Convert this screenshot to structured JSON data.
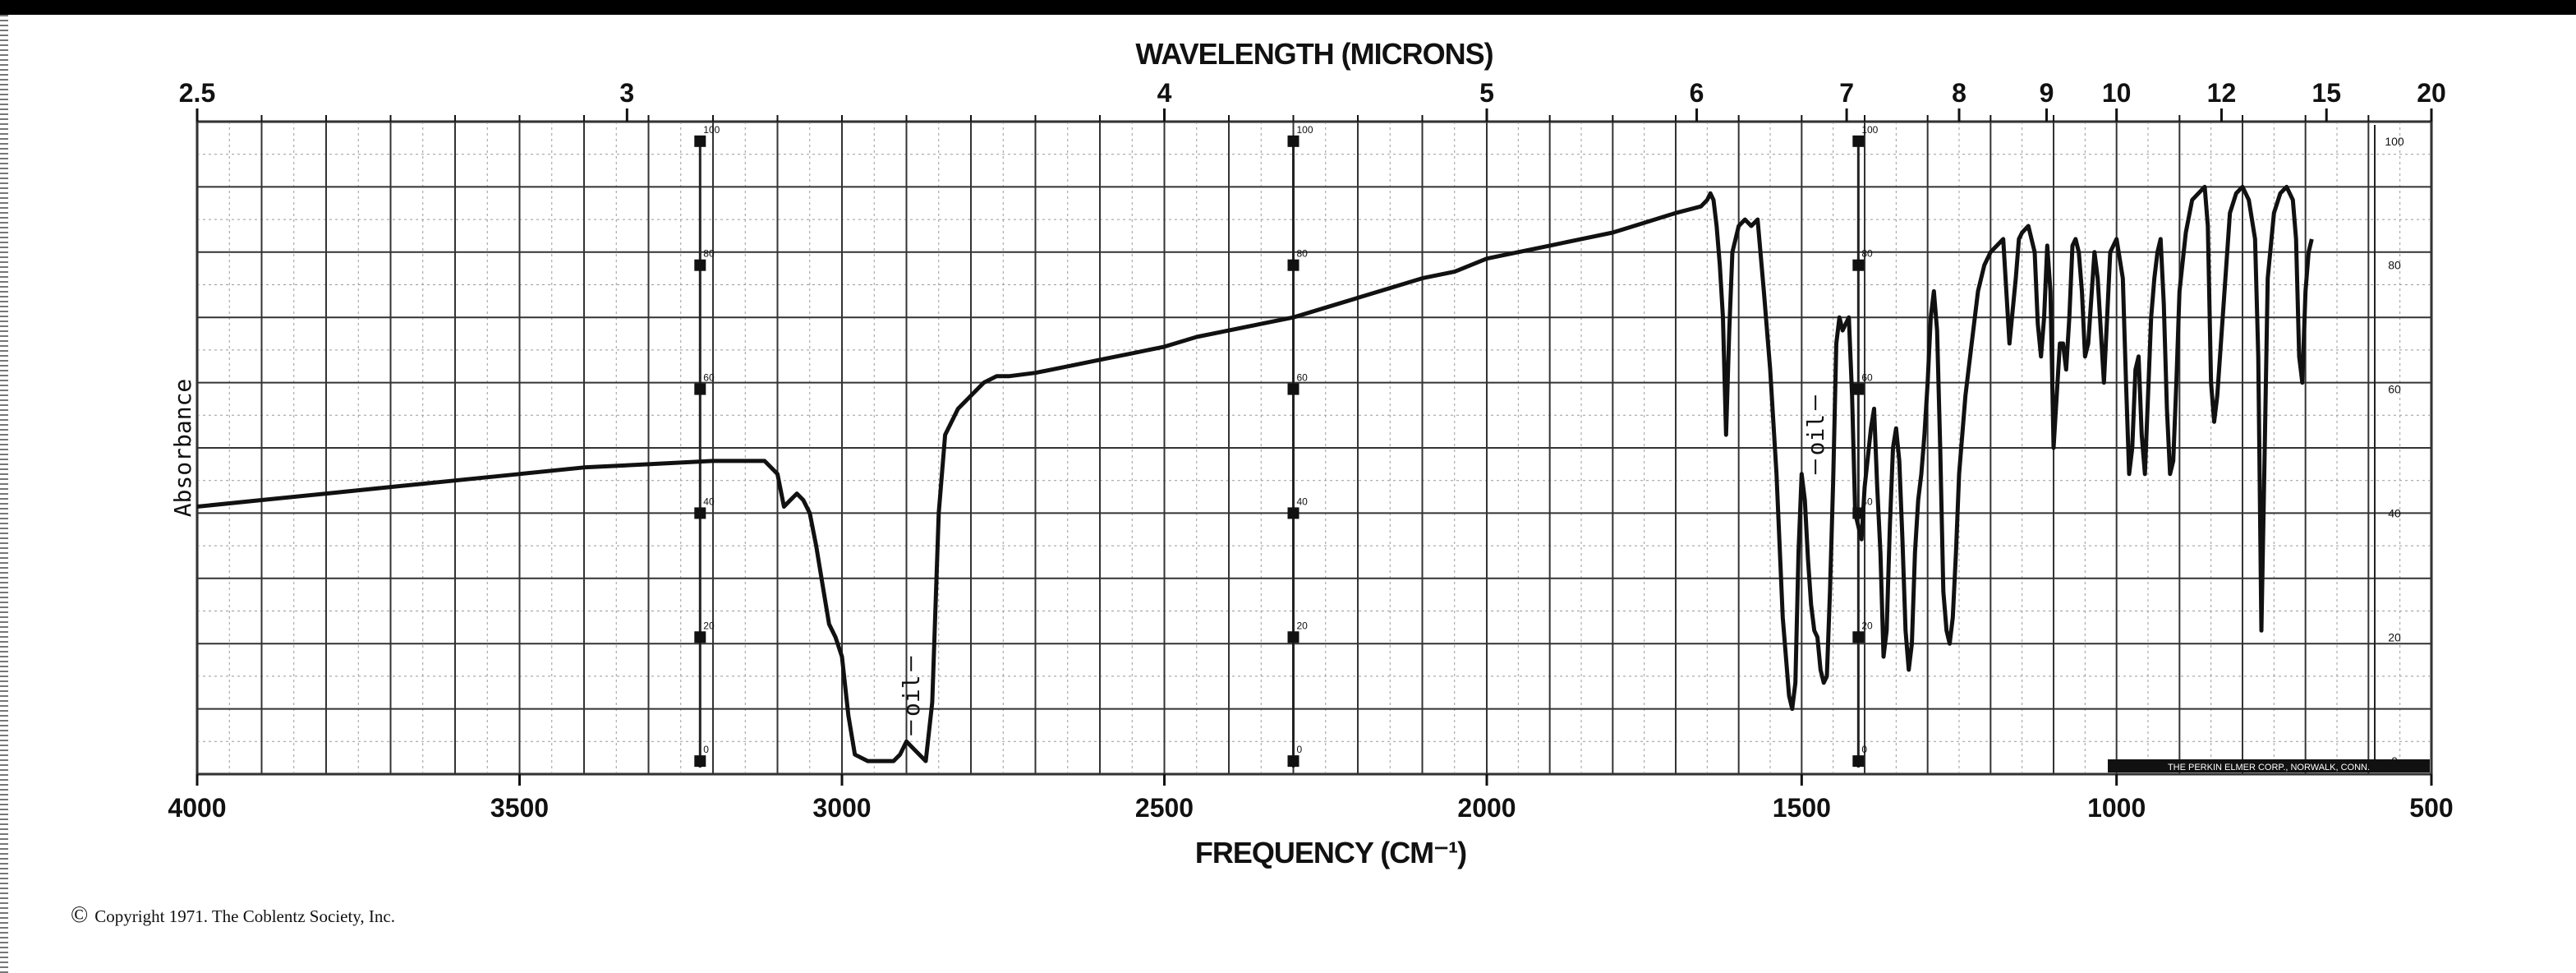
{
  "chart_data": {
    "type": "line",
    "title": "",
    "xlabel": "FREQUENCY (CM⁻¹)",
    "x2label": "WAVELENGTH (MICRONS)",
    "ylabel": "Absorbance",
    "x_range": [
      4000,
      500
    ],
    "x_ticks": [
      "4000",
      "3500",
      "3000",
      "2500",
      "2000",
      "1500",
      "1000",
      "500"
    ],
    "x_tick_values": [
      4000,
      3500,
      3000,
      2500,
      2000,
      1500,
      1000,
      500
    ],
    "wavelength_ticks": [
      "2.5",
      "3",
      "4",
      "5",
      "6",
      "7",
      "8",
      "9",
      "10",
      "12",
      "15",
      "20"
    ],
    "wavelength_values": [
      2.5,
      3,
      4,
      5,
      6,
      7,
      8,
      9,
      10,
      12,
      15,
      20
    ],
    "y_range": [
      0,
      100
    ],
    "y_scale_labels": [
      "100",
      "80",
      "60",
      "40",
      "20",
      "0"
    ],
    "y_scale_values": [
      100,
      80,
      60,
      40,
      20,
      0
    ],
    "grid": true,
    "annotations": [
      {
        "text": "oil",
        "x": 2880,
        "y": 12
      },
      {
        "text": "oil",
        "x": 1465,
        "y": 52
      }
    ],
    "series": [
      {
        "points": [
          [
            4000,
            41
          ],
          [
            3900,
            42
          ],
          [
            3800,
            43
          ],
          [
            3700,
            44
          ],
          [
            3600,
            45
          ],
          [
            3500,
            46
          ],
          [
            3400,
            47
          ],
          [
            3300,
            47.5
          ],
          [
            3200,
            48
          ],
          [
            3120,
            48
          ],
          [
            3100,
            46
          ],
          [
            3090,
            41
          ],
          [
            3080,
            42
          ],
          [
            3070,
            43
          ],
          [
            3060,
            42
          ],
          [
            3050,
            40
          ],
          [
            3040,
            35
          ],
          [
            3030,
            29
          ],
          [
            3020,
            23
          ],
          [
            3010,
            21
          ],
          [
            3000,
            18
          ],
          [
            2990,
            9
          ],
          [
            2980,
            3
          ],
          [
            2960,
            2
          ],
          [
            2940,
            2
          ],
          [
            2920,
            2
          ],
          [
            2910,
            3
          ],
          [
            2900,
            5
          ],
          [
            2890,
            4
          ],
          [
            2880,
            3
          ],
          [
            2870,
            2
          ],
          [
            2860,
            11
          ],
          [
            2850,
            40
          ],
          [
            2840,
            52
          ],
          [
            2820,
            56
          ],
          [
            2800,
            58
          ],
          [
            2780,
            60
          ],
          [
            2760,
            61
          ],
          [
            2740,
            61
          ],
          [
            2700,
            61.5
          ],
          [
            2650,
            62.5
          ],
          [
            2600,
            63.5
          ],
          [
            2550,
            64.5
          ],
          [
            2500,
            65.5
          ],
          [
            2450,
            67
          ],
          [
            2400,
            68
          ],
          [
            2350,
            69
          ],
          [
            2300,
            70
          ],
          [
            2250,
            71.5
          ],
          [
            2200,
            73
          ],
          [
            2150,
            74.5
          ],
          [
            2100,
            76
          ],
          [
            2050,
            77
          ],
          [
            2000,
            79
          ],
          [
            1950,
            80
          ],
          [
            1900,
            81
          ],
          [
            1850,
            82
          ],
          [
            1800,
            83
          ],
          [
            1750,
            84.5
          ],
          [
            1700,
            86
          ],
          [
            1660,
            87
          ],
          [
            1650,
            88
          ],
          [
            1645,
            89
          ],
          [
            1640,
            88
          ],
          [
            1635,
            84
          ],
          [
            1630,
            78
          ],
          [
            1625,
            70
          ],
          [
            1620,
            52
          ],
          [
            1615,
            68
          ],
          [
            1610,
            80
          ],
          [
            1600,
            84
          ],
          [
            1590,
            85
          ],
          [
            1580,
            84
          ],
          [
            1570,
            85
          ],
          [
            1560,
            74
          ],
          [
            1550,
            62
          ],
          [
            1540,
            46
          ],
          [
            1530,
            24
          ],
          [
            1520,
            12
          ],
          [
            1515,
            10
          ],
          [
            1510,
            14
          ],
          [
            1505,
            34
          ],
          [
            1500,
            46
          ],
          [
            1495,
            42
          ],
          [
            1490,
            33
          ],
          [
            1485,
            26
          ],
          [
            1480,
            22
          ],
          [
            1475,
            21
          ],
          [
            1470,
            16
          ],
          [
            1465,
            14
          ],
          [
            1460,
            15
          ],
          [
            1455,
            28
          ],
          [
            1450,
            45
          ],
          [
            1445,
            66
          ],
          [
            1440,
            70
          ],
          [
            1435,
            68
          ],
          [
            1430,
            69
          ],
          [
            1425,
            70
          ],
          [
            1420,
            58
          ],
          [
            1415,
            40
          ],
          [
            1410,
            38
          ],
          [
            1405,
            36
          ],
          [
            1400,
            44
          ],
          [
            1390,
            53
          ],
          [
            1385,
            56
          ],
          [
            1380,
            44
          ],
          [
            1375,
            34
          ],
          [
            1370,
            18
          ],
          [
            1365,
            22
          ],
          [
            1360,
            38
          ],
          [
            1355,
            50
          ],
          [
            1350,
            53
          ],
          [
            1345,
            48
          ],
          [
            1340,
            36
          ],
          [
            1335,
            22
          ],
          [
            1330,
            16
          ],
          [
            1325,
            20
          ],
          [
            1320,
            34
          ],
          [
            1315,
            42
          ],
          [
            1310,
            46
          ],
          [
            1305,
            52
          ],
          [
            1300,
            60
          ],
          [
            1295,
            70
          ],
          [
            1290,
            74
          ],
          [
            1285,
            68
          ],
          [
            1280,
            50
          ],
          [
            1275,
            28
          ],
          [
            1270,
            22
          ],
          [
            1265,
            20
          ],
          [
            1260,
            24
          ],
          [
            1255,
            34
          ],
          [
            1250,
            46
          ],
          [
            1240,
            58
          ],
          [
            1230,
            66
          ],
          [
            1220,
            74
          ],
          [
            1210,
            78
          ],
          [
            1200,
            80
          ],
          [
            1190,
            81
          ],
          [
            1180,
            82
          ],
          [
            1175,
            74
          ],
          [
            1170,
            66
          ],
          [
            1160,
            76
          ],
          [
            1155,
            82
          ],
          [
            1150,
            83
          ],
          [
            1140,
            84
          ],
          [
            1130,
            80
          ],
          [
            1125,
            69
          ],
          [
            1120,
            64
          ],
          [
            1115,
            70
          ],
          [
            1110,
            81
          ],
          [
            1105,
            74
          ],
          [
            1100,
            50
          ],
          [
            1095,
            58
          ],
          [
            1090,
            66
          ],
          [
            1085,
            66
          ],
          [
            1080,
            62
          ],
          [
            1075,
            70
          ],
          [
            1070,
            81
          ],
          [
            1065,
            82
          ],
          [
            1060,
            80
          ],
          [
            1055,
            74
          ],
          [
            1050,
            64
          ],
          [
            1045,
            66
          ],
          [
            1040,
            73
          ],
          [
            1035,
            80
          ],
          [
            1030,
            76
          ],
          [
            1025,
            68
          ],
          [
            1020,
            60
          ],
          [
            1015,
            70
          ],
          [
            1010,
            80
          ],
          [
            1000,
            82
          ],
          [
            990,
            76
          ],
          [
            985,
            60
          ],
          [
            980,
            46
          ],
          [
            975,
            50
          ],
          [
            970,
            62
          ],
          [
            965,
            64
          ],
          [
            960,
            52
          ],
          [
            955,
            46
          ],
          [
            950,
            58
          ],
          [
            945,
            70
          ],
          [
            940,
            76
          ],
          [
            935,
            80
          ],
          [
            930,
            82
          ],
          [
            925,
            72
          ],
          [
            920,
            56
          ],
          [
            915,
            46
          ],
          [
            910,
            48
          ],
          [
            905,
            60
          ],
          [
            900,
            74
          ],
          [
            890,
            83
          ],
          [
            880,
            88
          ],
          [
            870,
            89
          ],
          [
            860,
            90
          ],
          [
            855,
            84
          ],
          [
            850,
            60
          ],
          [
            845,
            54
          ],
          [
            840,
            58
          ],
          [
            830,
            72
          ],
          [
            820,
            86
          ],
          [
            810,
            89
          ],
          [
            800,
            90
          ],
          [
            790,
            88
          ],
          [
            780,
            82
          ],
          [
            775,
            64
          ],
          [
            770,
            22
          ],
          [
            765,
            48
          ],
          [
            760,
            76
          ],
          [
            750,
            86
          ],
          [
            740,
            89
          ],
          [
            730,
            90
          ],
          [
            720,
            88
          ],
          [
            715,
            82
          ],
          [
            710,
            64
          ],
          [
            705,
            60
          ],
          [
            700,
            74
          ],
          [
            695,
            80
          ],
          [
            690,
            82
          ]
        ]
      }
    ]
  },
  "footer": {
    "copyright_symbol": "©",
    "copyright": "Copyright 1971.  The Coblentz Society, Inc."
  },
  "chart_note": "THE PERKIN ELMER CORP., NORWALK, CONN."
}
